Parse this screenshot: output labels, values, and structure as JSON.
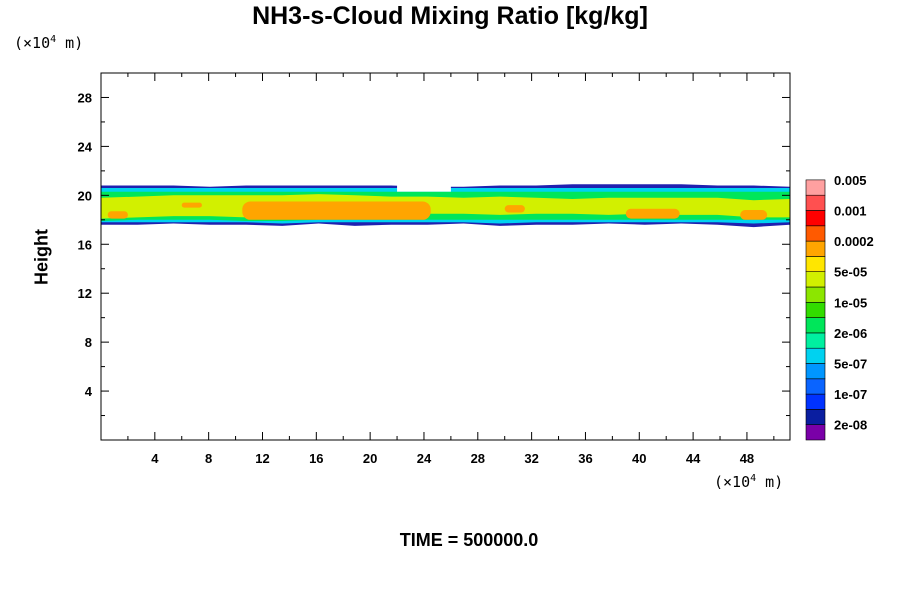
{
  "chart_data": {
    "type": "heatmap",
    "title": "NH3-s-Cloud Mixing Ratio [kg/kg]",
    "ylabel": "Height",
    "x_unit_prefix": "(×10",
    "x_unit_exp": "4",
    "x_unit_suffix": " m)",
    "y_unit_prefix": "(×10",
    "y_unit_exp": "4",
    "y_unit_suffix": " m)",
    "xlim": [
      0,
      51.2
    ],
    "ylim": [
      0,
      30
    ],
    "x_ticks": [
      4,
      8,
      12,
      16,
      20,
      24,
      28,
      32,
      36,
      40,
      44,
      48
    ],
    "y_ticks": [
      4,
      8,
      12,
      16,
      20,
      24,
      28
    ],
    "colorbar": {
      "colors": [
        "#7a00a8",
        "#0a1ea0",
        "#0032ff",
        "#0a64ff",
        "#0096ff",
        "#00d2f0",
        "#00f0a0",
        "#00e65a",
        "#32dc00",
        "#8ce600",
        "#d2f000",
        "#ffe600",
        "#ffa500",
        "#ff5a00",
        "#ff0000",
        "#ff5050",
        "#ffa0a0"
      ],
      "labels": [
        {
          "text": "2e-08",
          "after_band": 1
        },
        {
          "text": "1e-07",
          "after_band": 3
        },
        {
          "text": "5e-07",
          "after_band": 5
        },
        {
          "text": "2e-06",
          "after_band": 7
        },
        {
          "text": "1e-05",
          "after_band": 9
        },
        {
          "text": "5e-05",
          "after_band": 11
        },
        {
          "text": "0.0002",
          "after_band": 13
        },
        {
          "text": "0.001",
          "after_band": 15
        },
        {
          "text": "0.005",
          "after_band": 17
        }
      ]
    },
    "cloud_layers": [
      {
        "level": "edge",
        "color": "#2020b0",
        "top": [
          20.8,
          20.8,
          20.8,
          20.7,
          20.8,
          20.8,
          20.8,
          20.8,
          20.8,
          20.7,
          20.7,
          20.8,
          20.8,
          20.9,
          20.9,
          20.9,
          20.9,
          20.8,
          20.8,
          20.7
        ],
        "bottom": [
          17.6,
          17.6,
          17.7,
          17.6,
          17.6,
          17.5,
          17.7,
          17.5,
          17.6,
          17.6,
          17.7,
          17.5,
          17.6,
          17.6,
          17.7,
          17.6,
          17.7,
          17.6,
          17.4,
          17.6
        ]
      },
      {
        "level": "outer",
        "color": "#00d2f0",
        "top": [
          20.6,
          20.6,
          20.6,
          20.6,
          20.6,
          20.6,
          20.6,
          20.6,
          20.6,
          20.6,
          20.6,
          20.6,
          20.6,
          20.6,
          20.6,
          20.6,
          20.6,
          20.6,
          20.6,
          20.6
        ],
        "bottom": [
          17.8,
          17.8,
          17.8,
          17.8,
          17.8,
          17.7,
          17.8,
          17.8,
          17.8,
          17.8,
          17.8,
          17.7,
          17.8,
          17.8,
          17.8,
          17.8,
          17.8,
          17.8,
          17.7,
          17.8
        ]
      },
      {
        "level": "mid",
        "color": "#00e65a",
        "top": [
          20.3,
          20.3,
          20.3,
          20.3,
          20.3,
          20.3,
          20.3,
          20.3,
          20.3,
          20.3,
          20.3,
          20.3,
          20.3,
          20.3,
          20.3,
          20.3,
          20.3,
          20.3,
          20.3,
          20.3
        ],
        "bottom": [
          17.9,
          18.0,
          18.0,
          18.0,
          17.9,
          17.9,
          18.0,
          18.0,
          18.0,
          18.0,
          18.0,
          18.0,
          18.0,
          18.0,
          18.0,
          18.0,
          18.0,
          18.0,
          18.0,
          18.0
        ]
      },
      {
        "level": "inner",
        "color": "#d2f000",
        "top": [
          19.8,
          19.9,
          20.0,
          20.0,
          20.0,
          20.0,
          20.1,
          20.0,
          19.9,
          19.9,
          19.8,
          19.9,
          19.8,
          19.7,
          19.8,
          19.8,
          19.8,
          19.8,
          19.6,
          19.7
        ],
        "bottom": [
          18.1,
          18.2,
          18.3,
          18.3,
          18.2,
          18.1,
          18.2,
          18.3,
          18.4,
          18.5,
          18.5,
          18.4,
          18.5,
          18.5,
          18.4,
          18.5,
          18.4,
          18.4,
          18.2,
          18.2
        ]
      }
    ],
    "core_regions": [
      {
        "x": [
          0.5,
          2.0
        ],
        "top": 18.7,
        "bottom": 18.1
      },
      {
        "x": [
          6.0,
          7.5
        ],
        "top": 19.4,
        "bottom": 19.0
      },
      {
        "x": [
          10.5,
          24.5
        ],
        "top": 19.5,
        "bottom": 18.0
      },
      {
        "x": [
          30.0,
          31.5
        ],
        "top": 19.2,
        "bottom": 18.6
      },
      {
        "x": [
          39.0,
          43.0
        ],
        "top": 18.9,
        "bottom": 18.1
      },
      {
        "x": [
          47.5,
          49.5
        ],
        "top": 18.8,
        "bottom": 18.0
      }
    ],
    "gap": {
      "x": [
        22.0,
        26.0
      ],
      "top": 20.9,
      "bottom": 20.3
    }
  },
  "footer": {
    "time_label": "TIME = 500000.0"
  }
}
